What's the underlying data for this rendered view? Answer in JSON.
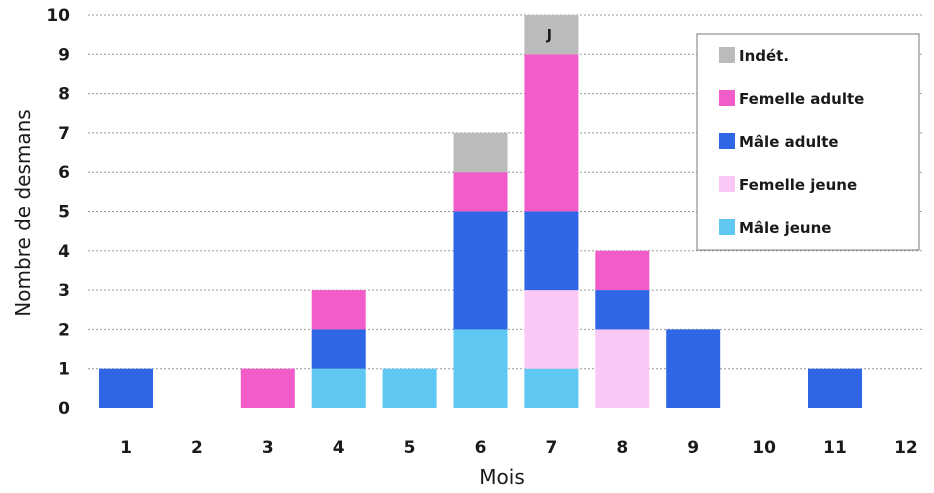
{
  "chart_data": {
    "type": "bar",
    "stacked": true,
    "xlabel": "Mois",
    "ylabel": "Nombre de desmans",
    "ylim": [
      0,
      10
    ],
    "yticks": [
      0,
      1,
      2,
      3,
      4,
      5,
      6,
      7,
      8,
      9,
      10
    ],
    "grid": "horizontal dotted",
    "legend_position": "top-right",
    "categories": [
      "1",
      "2",
      "3",
      "4",
      "5",
      "6",
      "7",
      "8",
      "9",
      "10",
      "11",
      "12"
    ],
    "series": [
      {
        "name": "Mâle jeune",
        "color": "#5ec8f2",
        "values": [
          0,
          0,
          0,
          1,
          1,
          2,
          1,
          0,
          0,
          0,
          0,
          0
        ]
      },
      {
        "name": "Femelle jeune",
        "color": "#fbc8f5",
        "values": [
          0,
          0,
          0,
          0,
          0,
          0,
          2,
          2,
          0,
          0,
          0,
          0
        ]
      },
      {
        "name": "Mâle adulte",
        "color": "#2f66e6",
        "values": [
          1,
          0,
          0,
          1,
          0,
          3,
          2,
          1,
          2,
          0,
          1,
          0
        ]
      },
      {
        "name": "Femelle adulte",
        "color": "#f25cc8",
        "values": [
          0,
          0,
          1,
          1,
          0,
          1,
          4,
          1,
          0,
          0,
          0,
          0
        ]
      },
      {
        "name": "Indét.",
        "color": "#bbbbbb",
        "values": [
          0,
          0,
          0,
          0,
          0,
          1,
          1,
          0,
          0,
          0,
          0,
          0
        ]
      }
    ],
    "legend_order": [
      "Indét.",
      "Femelle adulte",
      "Mâle adulte",
      "Femelle jeune",
      "Mâle jeune"
    ],
    "annotations": [
      {
        "text": "J",
        "category": "7",
        "series": "Indét."
      }
    ]
  }
}
